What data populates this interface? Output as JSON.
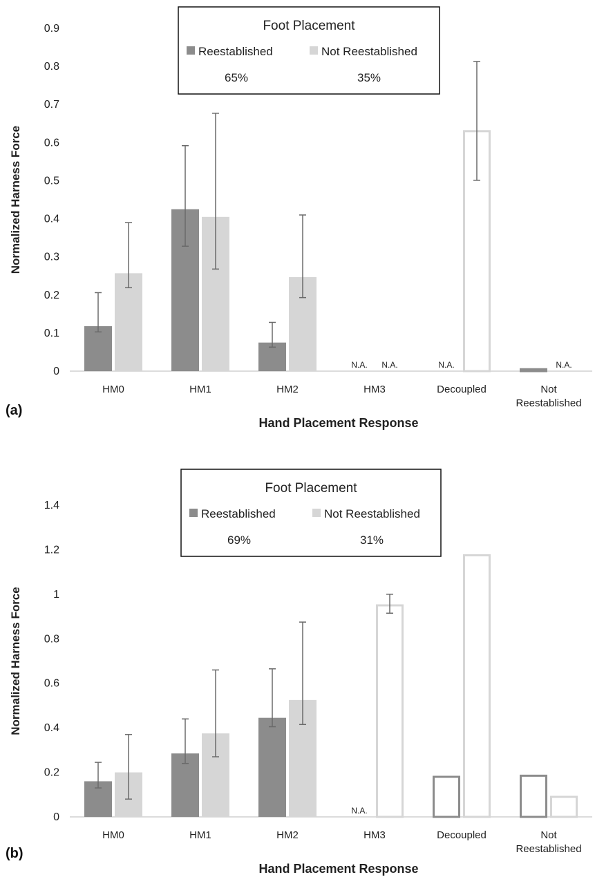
{
  "chart_data": [
    {
      "type": "bar",
      "panel_label": "(a)",
      "xlabel": "Hand Placement Response",
      "ylabel": "Normalized Harness Force",
      "ylim": [
        0,
        0.9
      ],
      "yticks": [
        "0",
        "0.1",
        "0.2",
        "0.3",
        "0.4",
        "0.5",
        "0.6",
        "0.7",
        "0.8",
        "0.9"
      ],
      "categories": [
        "HM0",
        "HM1",
        "HM2",
        "HM3",
        "Decoupled",
        "Not Reestablished"
      ],
      "legend": {
        "title": "Foot Placement",
        "entries": [
          {
            "name": "Reestablished",
            "percent": "65%",
            "color": "#8c8c8c"
          },
          {
            "name": "Not Reestablished",
            "percent": "35%",
            "color": "#d6d6d6"
          }
        ]
      },
      "series": [
        {
          "name": "Reestablished",
          "color": "#8c8c8c",
          "values": [
            0.118,
            0.425,
            0.075,
            null,
            null,
            0.005
          ],
          "err_low": [
            0.103,
            0.328,
            0.063,
            null,
            null,
            null
          ],
          "err_high": [
            0.206,
            0.592,
            0.128,
            null,
            null,
            null
          ],
          "hollow": [
            false,
            false,
            false,
            false,
            false,
            true
          ],
          "labels": [
            "",
            "",
            "",
            "N.A.",
            "N.A.",
            ""
          ]
        },
        {
          "name": "Not Reestablished",
          "color": "#d6d6d6",
          "values": [
            0.257,
            0.405,
            0.247,
            null,
            0.63,
            null
          ],
          "err_low": [
            0.219,
            0.268,
            0.193,
            null,
            0.501,
            null
          ],
          "err_high": [
            0.39,
            0.677,
            0.41,
            null,
            0.813,
            null
          ],
          "hollow": [
            false,
            false,
            false,
            false,
            true,
            false
          ],
          "labels": [
            "",
            "",
            "",
            "N.A.",
            "",
            "N.A."
          ]
        }
      ]
    },
    {
      "type": "bar",
      "panel_label": "(b)",
      "xlabel": "Hand Placement Response",
      "ylabel": "Normalized Harness Force",
      "ylim": [
        0,
        1.4
      ],
      "yticks": [
        "0",
        "0.2",
        "0.4",
        "0.6",
        "0.8",
        "1",
        "1.2",
        "1.4"
      ],
      "categories": [
        "HM0",
        "HM1",
        "HM2",
        "HM3",
        "Decoupled",
        "Not Reestablished"
      ],
      "legend": {
        "title": "Foot Placement",
        "entries": [
          {
            "name": "Reestablished",
            "percent": "69%",
            "color": "#8c8c8c"
          },
          {
            "name": "Not Reestablished",
            "percent": "31%",
            "color": "#d6d6d6"
          }
        ]
      },
      "series": [
        {
          "name": "Reestablished",
          "color": "#8c8c8c",
          "values": [
            0.16,
            0.285,
            0.445,
            null,
            0.18,
            0.185
          ],
          "err_low": [
            0.13,
            0.24,
            0.405,
            null,
            null,
            null
          ],
          "err_high": [
            0.245,
            0.44,
            0.665,
            null,
            null,
            null
          ],
          "hollow": [
            false,
            false,
            false,
            false,
            true,
            true
          ],
          "labels": [
            "",
            "",
            "",
            "N.A.",
            "",
            ""
          ]
        },
        {
          "name": "Not Reestablished",
          "color": "#d6d6d6",
          "values": [
            0.2,
            0.375,
            0.525,
            0.95,
            1.175,
            0.09
          ],
          "err_low": [
            0.08,
            0.27,
            0.415,
            0.915,
            null,
            null
          ],
          "err_high": [
            0.37,
            0.66,
            0.875,
            1.0,
            null,
            null
          ],
          "hollow": [
            false,
            false,
            false,
            true,
            true,
            true
          ],
          "labels": [
            "",
            "",
            "",
            "",
            "",
            ""
          ]
        }
      ]
    }
  ]
}
